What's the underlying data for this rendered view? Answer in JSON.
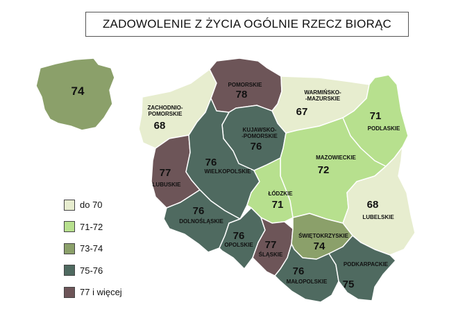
{
  "title": "ZADOWOLENIE Z ŻYCIA OGÓLNIE RZECZ BIORĄC",
  "colors": {
    "c1": "#e7edcf",
    "c2": "#b7e08e",
    "c3": "#8ba06a",
    "c4": "#4f6a60",
    "c5": "#6d5558",
    "border": "#ffffff"
  },
  "legend": [
    {
      "label": "do 70",
      "class": "c1"
    },
    {
      "label": "71-72",
      "class": "c2"
    },
    {
      "label": "73-74",
      "class": "c3"
    },
    {
      "label": "75-76",
      "class": "c4"
    },
    {
      "label": "77 i więcej",
      "class": "c5"
    }
  ],
  "poland": {
    "value": "74",
    "class": "c3"
  },
  "regions": [
    {
      "id": "zachodniopomorskie",
      "name": "ZACHODNIO-\nPOMORSKIE",
      "value": "68",
      "class": "c1"
    },
    {
      "id": "pomorskie",
      "name": "POMORSKIE",
      "value": "78",
      "class": "c5"
    },
    {
      "id": "warminsko-mazurskie",
      "name": "WARMIŃSKO-\n-MAZURSKIE",
      "value": "67",
      "class": "c1"
    },
    {
      "id": "podlaskie",
      "name": "PODLASKIE",
      "value": "71",
      "class": "c2"
    },
    {
      "id": "kujawsko-pomorskie",
      "name": "KUJAWSKO-\n-POMORSKIE",
      "value": "76",
      "class": "c4"
    },
    {
      "id": "lubuskie",
      "name": "LUBUSKIE",
      "value": "77",
      "class": "c5"
    },
    {
      "id": "wielkopolskie",
      "name": "WIELKOPOLSKIE",
      "value": "76",
      "class": "c4"
    },
    {
      "id": "mazowieckie",
      "name": "MAZOWIECKIE",
      "value": "72",
      "class": "c2"
    },
    {
      "id": "lodzkie",
      "name": "ŁÓDZKIE",
      "value": "71",
      "class": "c2"
    },
    {
      "id": "lubelskie",
      "name": "LUBELSKIE",
      "value": "68",
      "class": "c1"
    },
    {
      "id": "dolnoslaskie",
      "name": "DOLNOŚLĄSKIE",
      "value": "76",
      "class": "c4"
    },
    {
      "id": "opolskie",
      "name": "OPOLSKIE",
      "value": "76",
      "class": "c4"
    },
    {
      "id": "slaskie",
      "name": "ŚLĄSKIE",
      "value": "77",
      "class": "c5"
    },
    {
      "id": "swietokrzyskie",
      "name": "ŚWIĘTOKRZYSKIE",
      "value": "74",
      "class": "c3"
    },
    {
      "id": "malopolskie",
      "name": "MAŁOPOLSKIE",
      "value": "76",
      "class": "c4"
    },
    {
      "id": "podkarpackie",
      "name": "PODKARPACKIE",
      "value": "75",
      "class": "c4"
    }
  ]
}
